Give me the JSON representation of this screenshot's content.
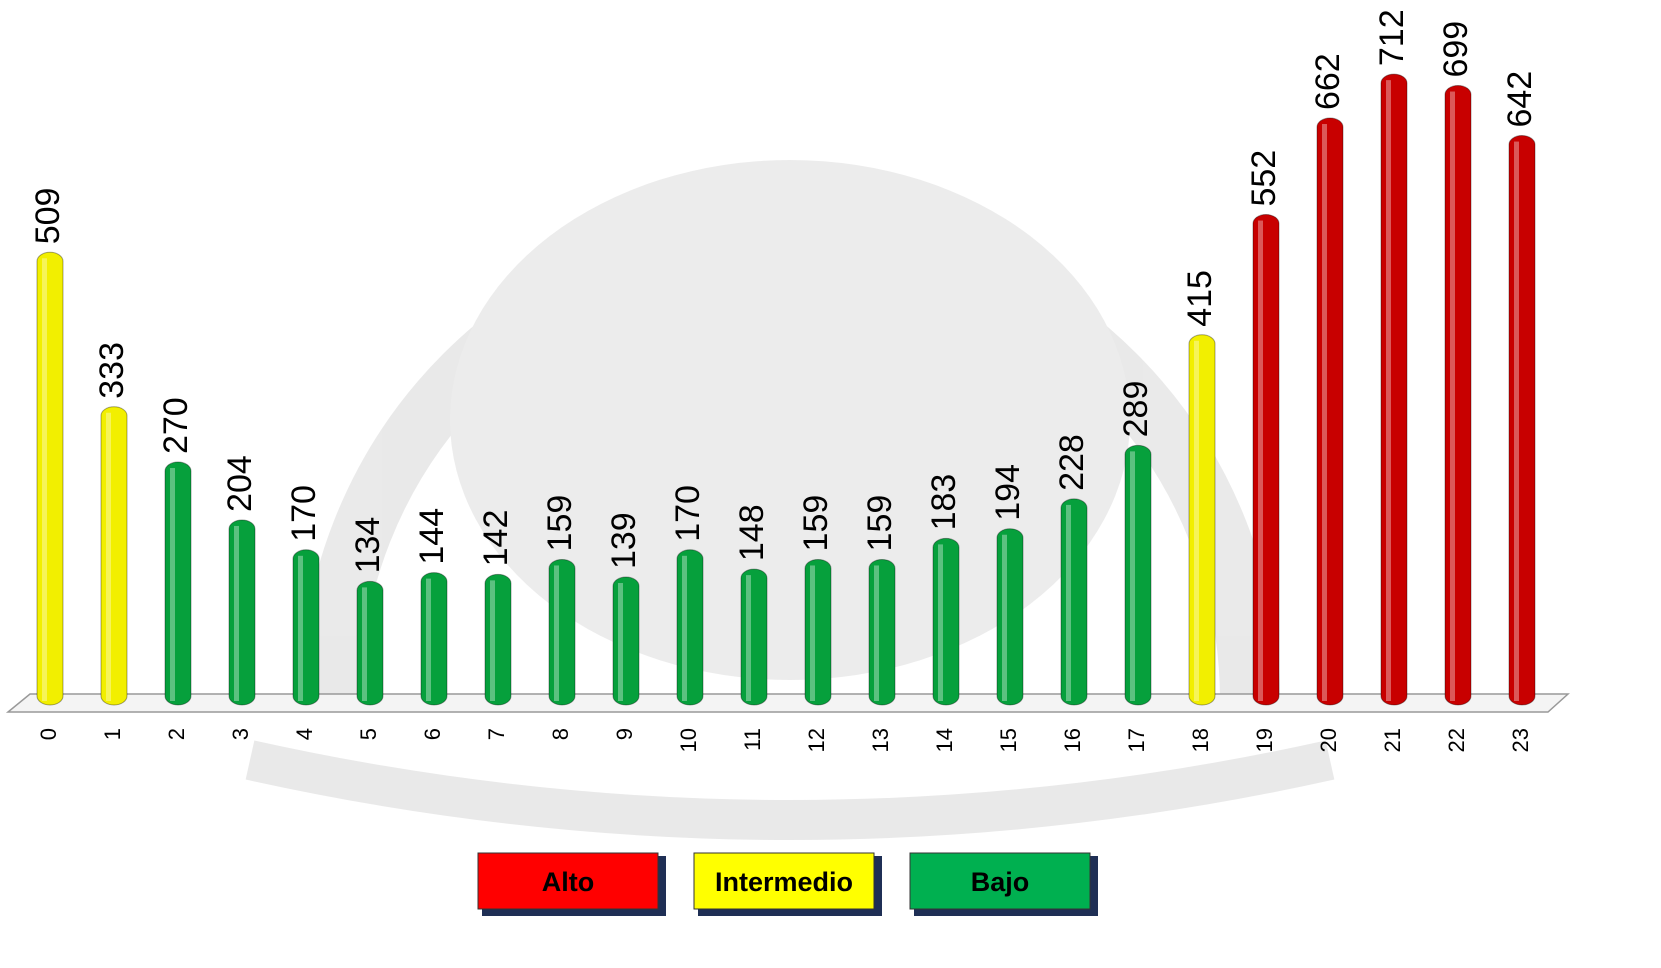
{
  "chart_data": {
    "type": "bar",
    "categories": [
      "0",
      "1",
      "2",
      "3",
      "4",
      "5",
      "6",
      "7",
      "8",
      "9",
      "10",
      "11",
      "12",
      "13",
      "14",
      "15",
      "16",
      "17",
      "18",
      "19",
      "20",
      "21",
      "22",
      "23"
    ],
    "values": [
      509,
      333,
      270,
      204,
      170,
      134,
      144,
      142,
      159,
      139,
      170,
      148,
      159,
      159,
      183,
      194,
      228,
      289,
      415,
      552,
      662,
      712,
      699,
      642
    ],
    "bar_colors": [
      "#f2ef00",
      "#f2ef00",
      "#06a03c",
      "#06a03c",
      "#06a03c",
      "#06a03c",
      "#06a03c",
      "#06a03c",
      "#06a03c",
      "#06a03c",
      "#06a03c",
      "#06a03c",
      "#06a03c",
      "#06a03c",
      "#06a03c",
      "#06a03c",
      "#06a03c",
      "#06a03c",
      "#f2ef00",
      "#c80000",
      "#c80000",
      "#c80000",
      "#c80000",
      "#c80000"
    ],
    "ylim": [
      0,
      760
    ],
    "legend": [
      {
        "name": "Alto",
        "color": "#ff0000"
      },
      {
        "name": "Intermedio",
        "color": "#ffff00"
      },
      {
        "name": "Bajo",
        "color": "#00b050"
      }
    ]
  }
}
